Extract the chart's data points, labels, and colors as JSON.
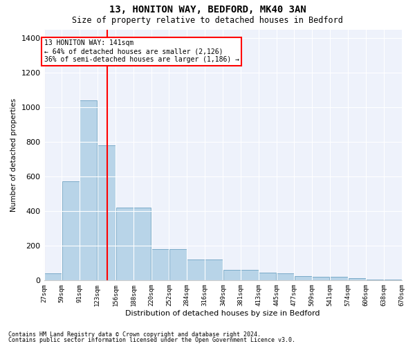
{
  "title": "13, HONITON WAY, BEDFORD, MK40 3AN",
  "subtitle": "Size of property relative to detached houses in Bedford",
  "xlabel": "Distribution of detached houses by size in Bedford",
  "ylabel": "Number of detached properties",
  "footnote1": "Contains HM Land Registry data © Crown copyright and database right 2024.",
  "footnote2": "Contains public sector information licensed under the Open Government Licence v3.0.",
  "annotation_title": "13 HONITON WAY: 141sqm",
  "annotation_line1": "← 64% of detached houses are smaller (2,126)",
  "annotation_line2": "36% of semi-detached houses are larger (1,186) →",
  "bar_left_edges": [
    27,
    59,
    91,
    123,
    156,
    188,
    220,
    252,
    284,
    316,
    349,
    381,
    413,
    445,
    477,
    509,
    541,
    574,
    606,
    638
  ],
  "bar_widths": [
    32,
    32,
    32,
    33,
    32,
    32,
    32,
    32,
    32,
    33,
    32,
    32,
    32,
    32,
    32,
    32,
    33,
    32,
    32,
    32
  ],
  "bar_heights": [
    40,
    570,
    1040,
    780,
    420,
    420,
    180,
    180,
    120,
    120,
    60,
    60,
    45,
    40,
    25,
    20,
    20,
    10,
    5,
    2
  ],
  "tick_labels": [
    "27sqm",
    "59sqm",
    "91sqm",
    "123sqm",
    "156sqm",
    "188sqm",
    "220sqm",
    "252sqm",
    "284sqm",
    "316sqm",
    "349sqm",
    "381sqm",
    "413sqm",
    "445sqm",
    "477sqm",
    "509sqm",
    "541sqm",
    "574sqm",
    "606sqm",
    "638sqm",
    "670sqm"
  ],
  "tick_positions": [
    27,
    59,
    91,
    123,
    156,
    188,
    220,
    252,
    284,
    316,
    349,
    381,
    413,
    445,
    477,
    509,
    541,
    574,
    606,
    638,
    670
  ],
  "bar_color": "#b8d4e8",
  "bar_edge_color": "#7aaac8",
  "red_line_x": 141,
  "ylim": [
    0,
    1450
  ],
  "xlim": [
    27,
    670
  ],
  "background_color": "#eef2fb",
  "grid_color": "#ffffff"
}
